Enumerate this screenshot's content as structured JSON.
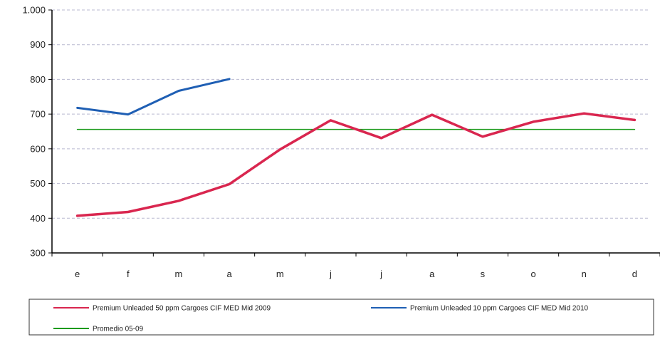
{
  "chart_data": {
    "type": "line",
    "categories": [
      "e",
      "f",
      "m",
      "a",
      "m",
      "j",
      "j",
      "a",
      "s",
      "o",
      "n",
      "d"
    ],
    "ylim": [
      300,
      1000
    ],
    "yticks": [
      300,
      400,
      500,
      600,
      700,
      800,
      900,
      1000
    ],
    "ytick_labels": [
      "300",
      "400",
      "500",
      "600",
      "700",
      "800",
      "900",
      "1.000"
    ],
    "grid": true,
    "legend_position": "bottom",
    "series": [
      {
        "name": "Premium Unleaded 50 ppm Cargoes CIF MED Mid 2009",
        "color": "#d9264f",
        "values": [
          407,
          418,
          450,
          498,
          598,
          682,
          631,
          698,
          635,
          678,
          702,
          683
        ]
      },
      {
        "name": "Premium Unleaded 10 ppm Cargoes CIF MED Mid 2010",
        "color": "#1f5fb4",
        "values": [
          718,
          699,
          767,
          801,
          null,
          null,
          null,
          null,
          null,
          null,
          null,
          null
        ]
      },
      {
        "name": "Promedio 05-09",
        "color": "#1a9a1a",
        "values": [
          656,
          656,
          656,
          656,
          656,
          656,
          656,
          656,
          656,
          656,
          656,
          656
        ]
      }
    ]
  }
}
